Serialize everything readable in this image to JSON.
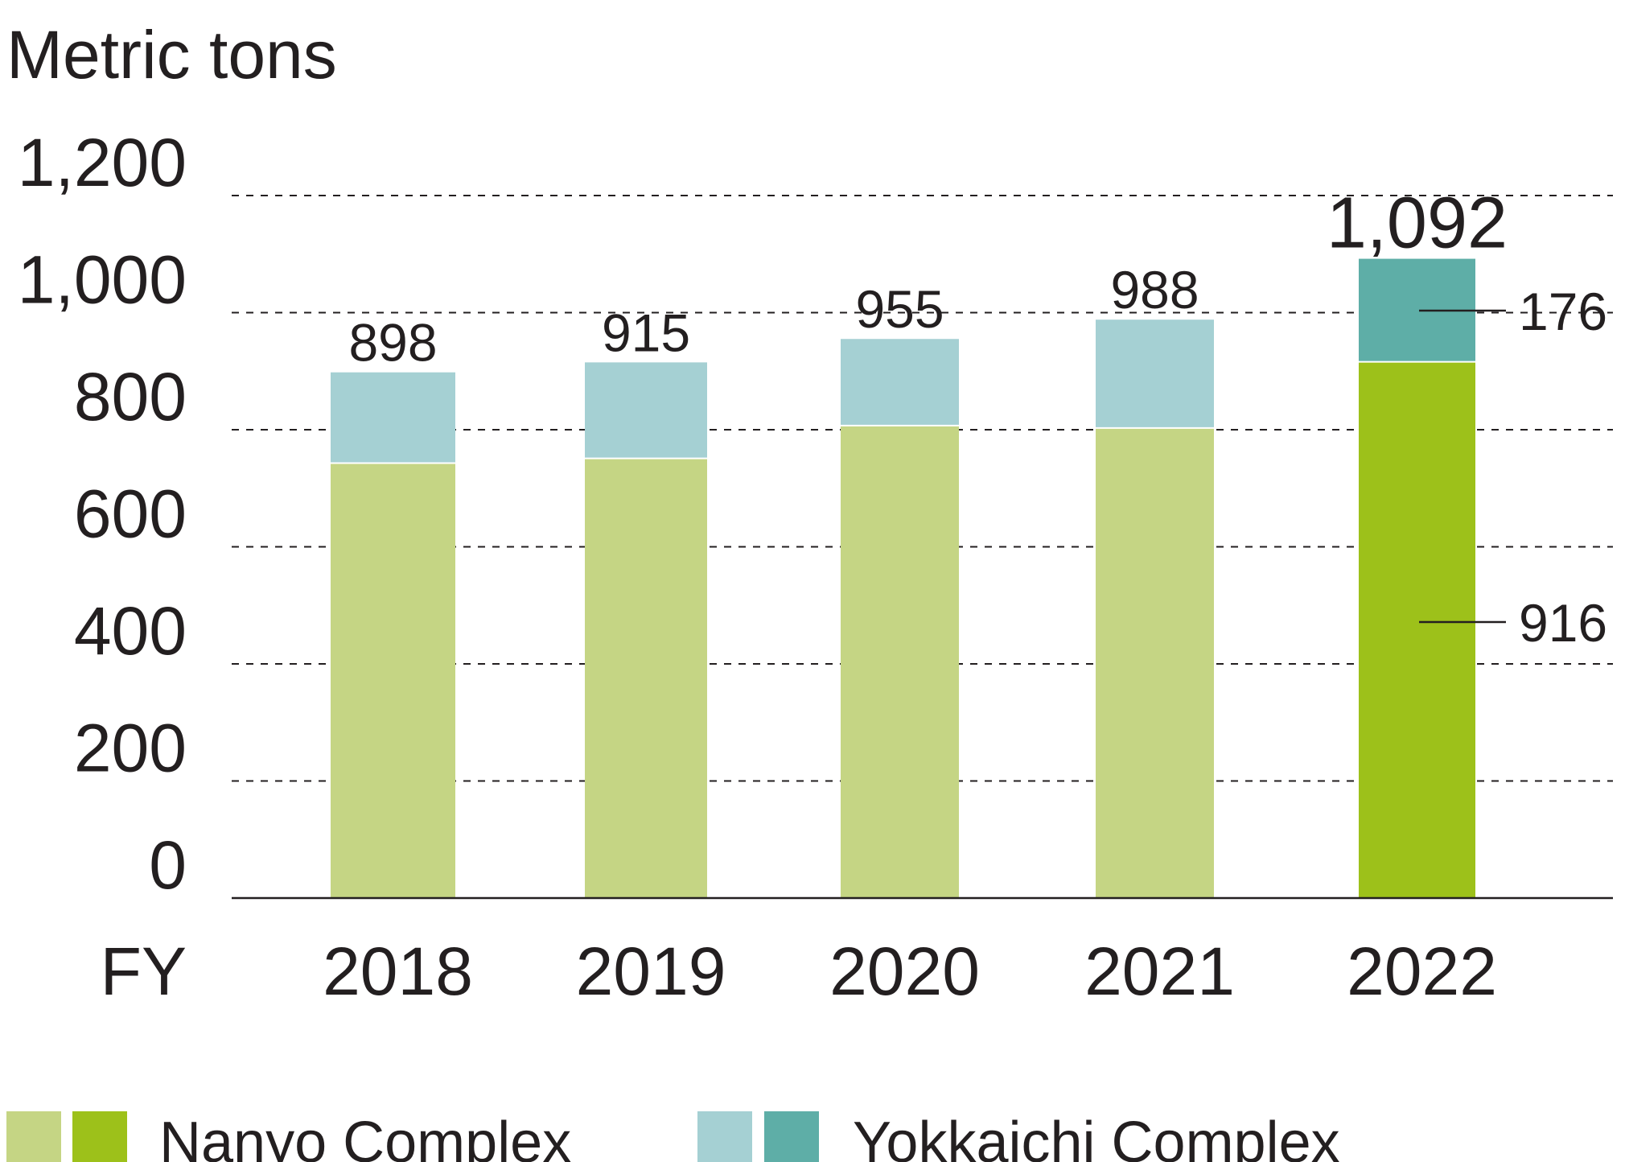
{
  "chart_data": {
    "type": "bar",
    "stacked": true,
    "ylabel": "Metric tons",
    "xlabel": "FY",
    "ylim": [
      0,
      1200
    ],
    "yticks": [
      "0",
      "200",
      "400",
      "600",
      "800",
      "1,000",
      "1,200"
    ],
    "grid": "horizontal dashed",
    "categories": [
      "2018",
      "2019",
      "2020",
      "2021",
      "2022"
    ],
    "totals": [
      898,
      915,
      955,
      988,
      1092
    ],
    "total_labels": [
      "898",
      "915",
      "955",
      "988",
      "1,092"
    ],
    "series": [
      {
        "name": "Nanyo Complex",
        "values": [
          743,
          751,
          807,
          803,
          916
        ],
        "colors": [
          "#c5d584",
          "#c5d584",
          "#c5d584",
          "#c5d584",
          "#9dc11a"
        ]
      },
      {
        "name": "Yokkaichi Complex",
        "values": [
          155,
          164,
          148,
          185,
          176
        ],
        "colors": [
          "#a5d0d3",
          "#a5d0d3",
          "#a5d0d3",
          "#a5d0d3",
          "#5eaea7"
        ]
      }
    ],
    "annotations": [
      {
        "category": "2022",
        "series": "Yokkaichi Complex",
        "label": "176"
      },
      {
        "category": "2022",
        "series": "Nanyo Complex",
        "label": "916"
      }
    ],
    "legend": {
      "position": "bottom",
      "items": [
        {
          "label": "Nanyo Complex",
          "swatches": [
            "#c5d584",
            "#9dc11a"
          ]
        },
        {
          "label": "Yokkaichi Complex",
          "swatches": [
            "#a5d0d3",
            "#5eaea7"
          ]
        }
      ]
    }
  }
}
